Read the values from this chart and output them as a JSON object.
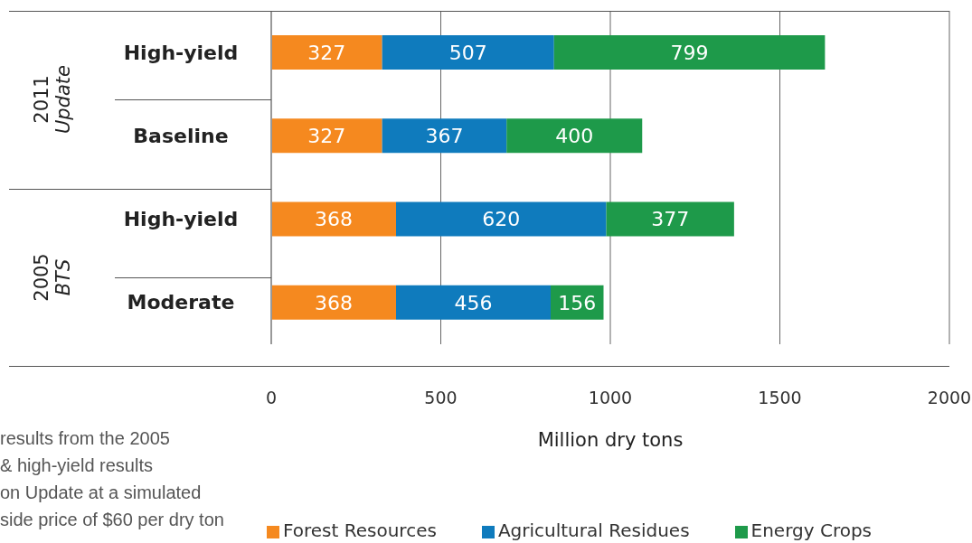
{
  "chart_data": {
    "type": "bar",
    "orientation": "horizontal",
    "stacked": true,
    "categories": [
      "High-yield",
      "Baseline",
      "High-yield",
      "Moderate"
    ],
    "series": [
      {
        "name": "Forest Resources",
        "color": "#f5891f",
        "values": [
          327,
          327,
          368,
          368
        ]
      },
      {
        "name": "Agricultural Residues",
        "color": "#0f7bbd",
        "values": [
          507,
          367,
          620,
          456
        ]
      },
      {
        "name": "Energy Crops",
        "color": "#1e9a4a",
        "values": [
          799,
          400,
          377,
          156
        ]
      }
    ],
    "xlabel": "Million dry tons",
    "xlim": [
      0,
      2000
    ],
    "xticks": [
      0,
      500,
      1000,
      1500,
      2000
    ],
    "grid": "x",
    "legend": "bottom",
    "data_labels": true,
    "annotations": [
      "2011 Update",
      "2005 BTS",
      "results from the 2005",
      "& high-yield results",
      "on Update at a simulated",
      "side price of $60 per dry ton"
    ]
  }
}
